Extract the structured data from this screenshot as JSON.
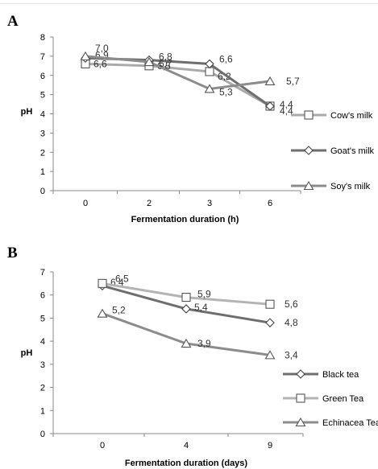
{
  "chart_data": [
    {
      "panel": "A",
      "type": "line",
      "categories": [
        "0",
        "2",
        "3",
        "6"
      ],
      "xlabel": "Fermentation duration (h)",
      "ylabel": "pH",
      "ylim": [
        0,
        8
      ],
      "yticks": [
        0,
        1,
        2,
        3,
        4,
        5,
        6,
        7,
        8
      ],
      "grid": false,
      "legend": "right",
      "series": [
        {
          "name": "Cow's milk",
          "marker": "square",
          "color": "#aaaaaa",
          "values": [
            6.6,
            6.5,
            6.2,
            4.4
          ],
          "labels": [
            "6,6",
            "6,5",
            "6,2",
            "4,4"
          ]
        },
        {
          "name": "Goat's milk",
          "marker": "diamond",
          "color": "#6e6e6e",
          "values": [
            6.9,
            6.8,
            6.6,
            4.4
          ],
          "labels": [
            "6,9",
            "6,8",
            "6,6",
            "4,4"
          ]
        },
        {
          "name": "Soy's milk",
          "marker": "triangle",
          "color": "#8c8c8c",
          "values": [
            7.0,
            6.7,
            5.3,
            5.7
          ],
          "labels": [
            "7,0",
            "6,7",
            "5,3",
            "5,7"
          ]
        }
      ]
    },
    {
      "panel": "B",
      "type": "line",
      "categories": [
        "0",
        "4",
        "9"
      ],
      "xlabel": "Fermentation duration (days)",
      "ylabel": "pH",
      "ylim": [
        0,
        7
      ],
      "yticks": [
        0,
        1,
        2,
        3,
        4,
        5,
        6,
        7
      ],
      "grid": false,
      "legend": "right",
      "series": [
        {
          "name": "Black tea",
          "marker": "diamond",
          "color": "#6e6e6e",
          "values": [
            6.4,
            5.4,
            4.8
          ],
          "labels": [
            "6,4",
            "5,4",
            "4,8"
          ]
        },
        {
          "name": "Green Tea",
          "marker": "square",
          "color": "#b4b4b4",
          "values": [
            6.5,
            5.9,
            5.6
          ],
          "labels": [
            "6,5",
            "5,9",
            "5,6"
          ]
        },
        {
          "name": "Echinacea  Tea",
          "marker": "triangle",
          "color": "#8c8c8c",
          "values": [
            5.2,
            3.9,
            3.4
          ],
          "labels": [
            "5,2",
            "3,9",
            "3,4"
          ]
        }
      ]
    }
  ],
  "panels": {
    "a_letter": "A",
    "b_letter": "B"
  }
}
